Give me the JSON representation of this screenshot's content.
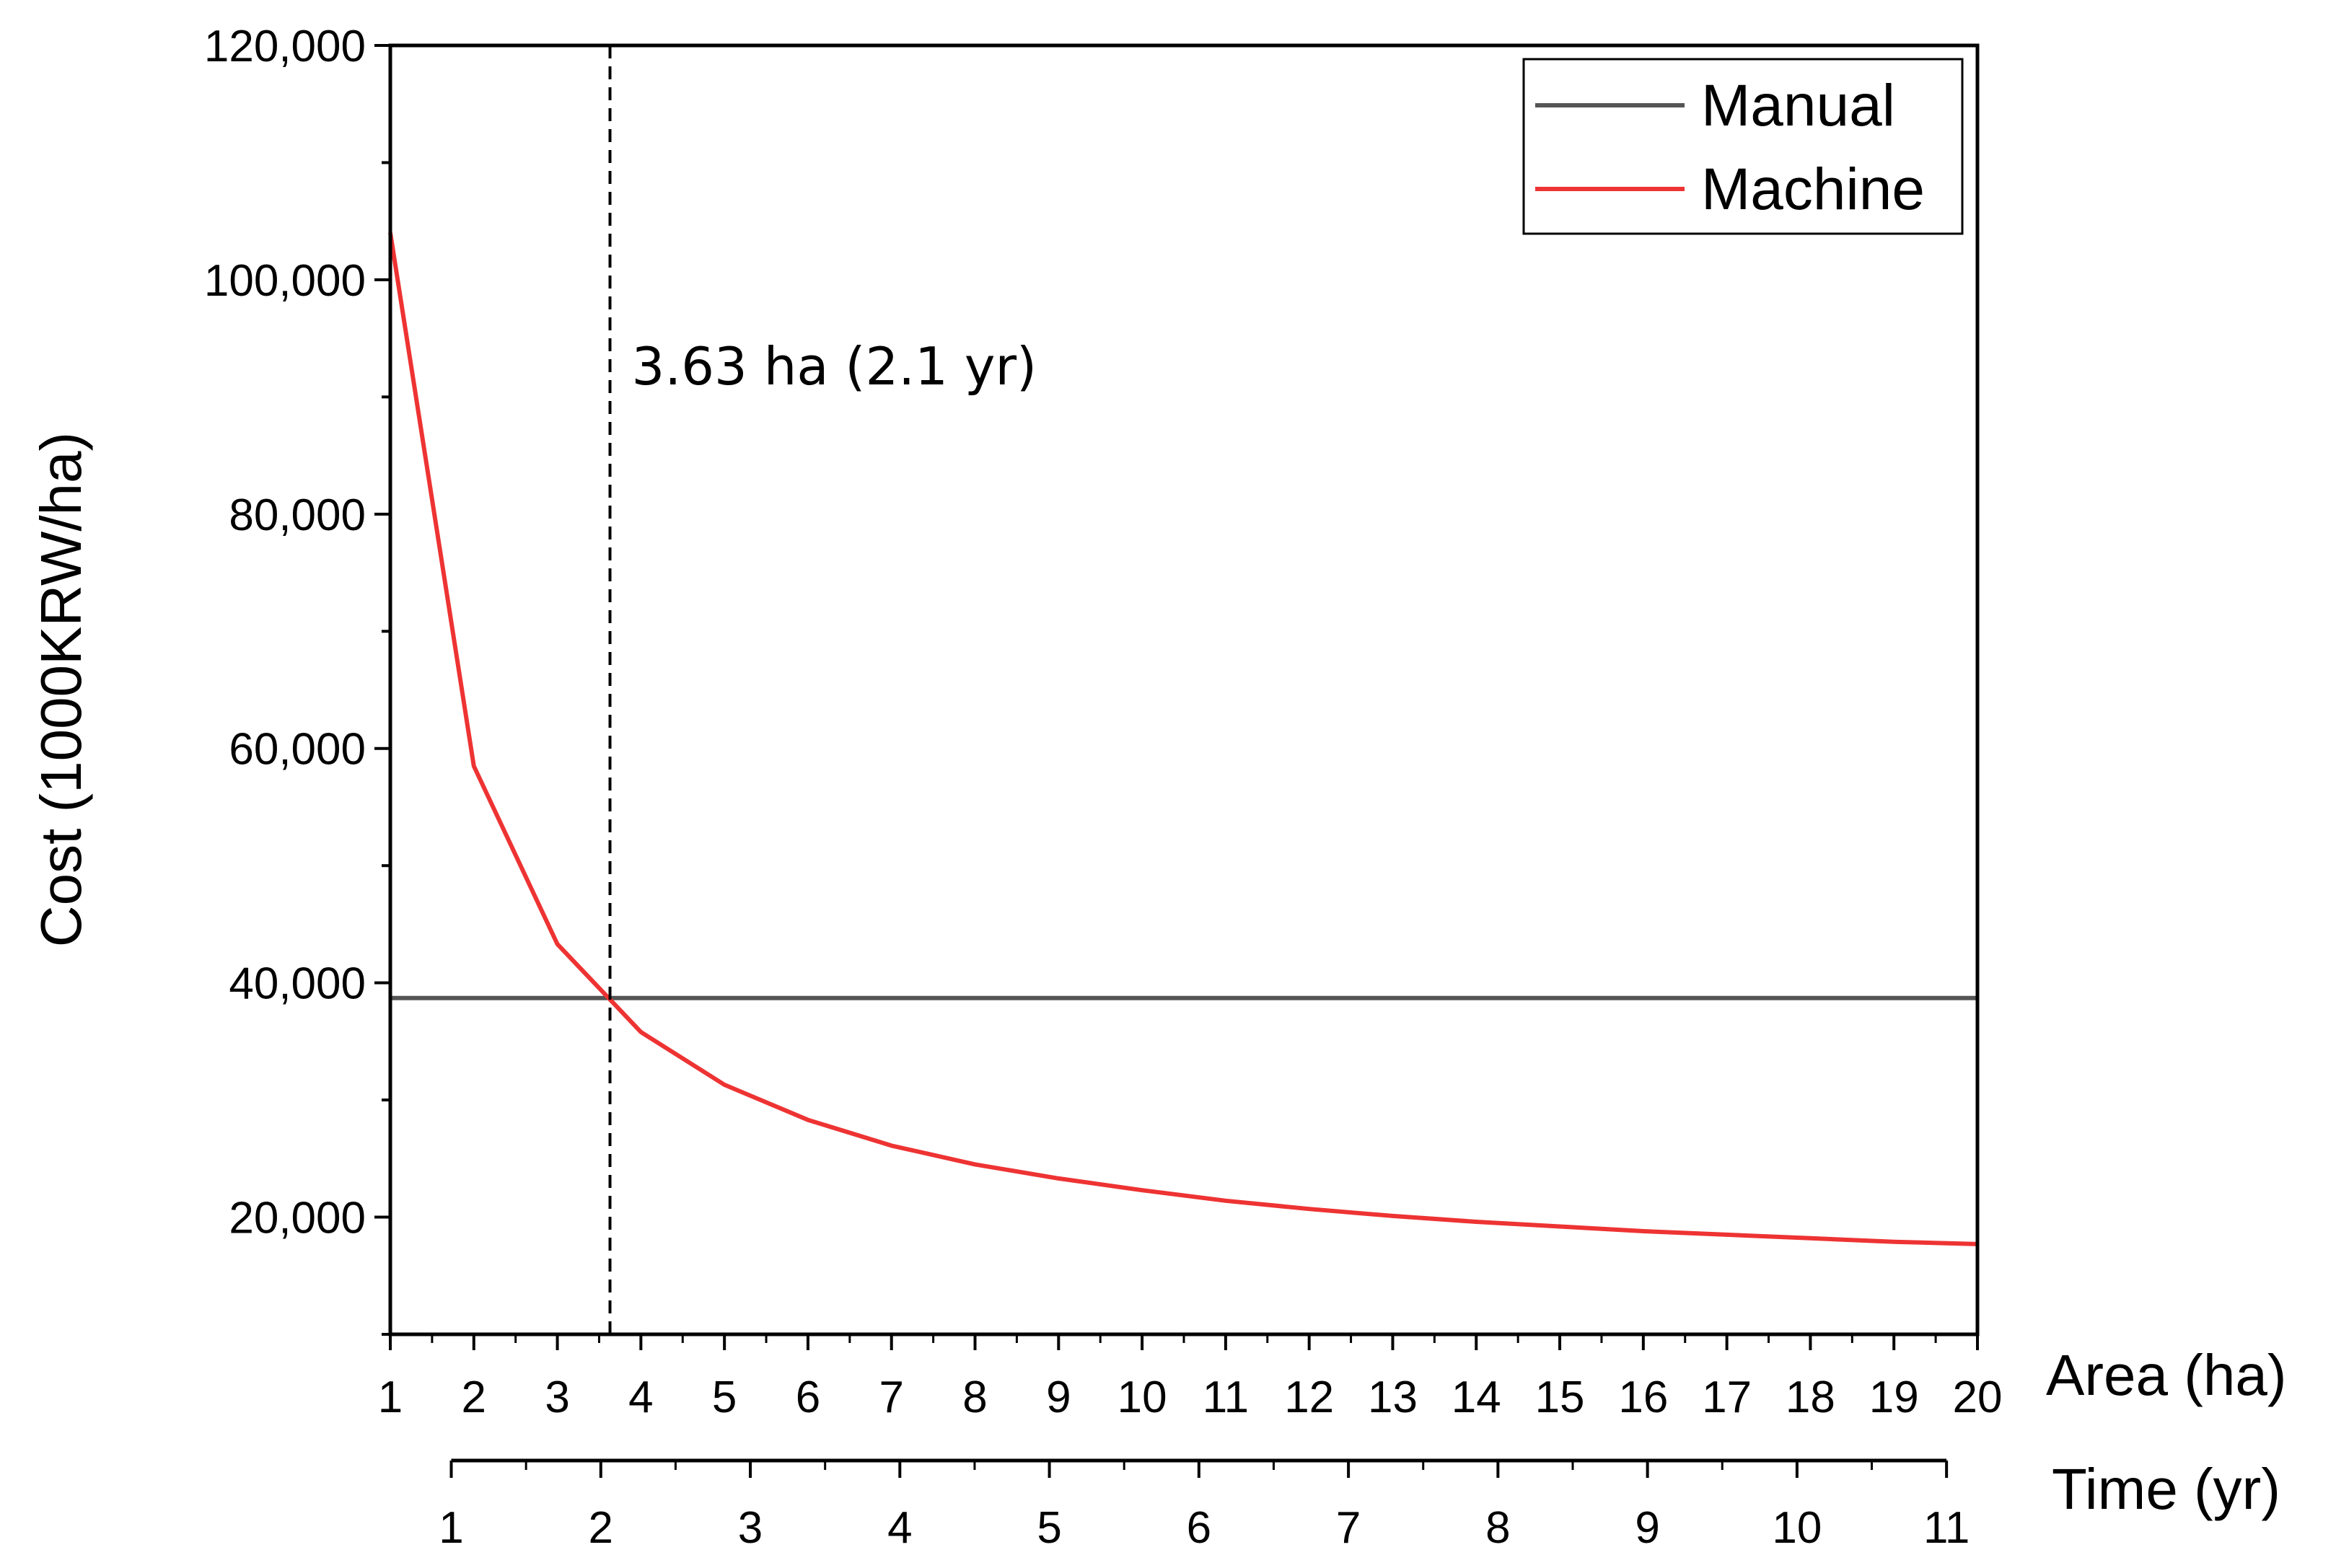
{
  "chart_data": {
    "type": "line",
    "title": "",
    "xlabel": "Area (ha)",
    "x2label": "Time (yr)",
    "ylabel": "Cost (1000KRW/ha)",
    "xlim": [
      1,
      20
    ],
    "ylim": [
      10000,
      120000
    ],
    "x_ticks": [
      1,
      2,
      3,
      4,
      5,
      6,
      7,
      8,
      9,
      10,
      11,
      12,
      13,
      14,
      15,
      16,
      17,
      18,
      19,
      20
    ],
    "y_ticks": [
      {
        "value": 20000,
        "label": "20,000"
      },
      {
        "value": 40000,
        "label": "40,000"
      },
      {
        "value": 60000,
        "label": "60,000"
      },
      {
        "value": 80000,
        "label": "80,000"
      },
      {
        "value": 100000,
        "label": "100,000"
      },
      {
        "value": 120000,
        "label": "120,000"
      }
    ],
    "time_ticks": [
      {
        "label": "1",
        "area": 1.73
      },
      {
        "label": "2",
        "area": 3.52
      },
      {
        "label": "3",
        "area": 5.31
      },
      {
        "label": "4",
        "area": 7.1
      },
      {
        "label": "5",
        "area": 8.89
      },
      {
        "label": "6",
        "area": 10.68
      },
      {
        "label": "7",
        "area": 12.47
      },
      {
        "label": "8",
        "area": 14.26
      },
      {
        "label": "9",
        "area": 16.05
      },
      {
        "label": "10",
        "area": 17.84
      },
      {
        "label": "11",
        "area": 19.63
      }
    ],
    "time_axis_range_area": [
      1.73,
      19.63
    ],
    "series": [
      {
        "name": "Manual",
        "color": "#555555",
        "x": [
          1,
          20
        ],
        "y": [
          38700,
          38700
        ]
      },
      {
        "name": "Machine",
        "color": "#ee3333",
        "x": [
          1,
          2,
          3,
          4,
          5,
          6,
          7,
          8,
          9,
          10,
          11,
          12,
          13,
          14,
          15,
          16,
          17,
          18,
          19,
          20
        ],
        "y": [
          104000,
          58500,
          43300,
          35800,
          31300,
          28300,
          26100,
          24500,
          23300,
          22300,
          21400,
          20700,
          20100,
          19600,
          19200,
          18800,
          18500,
          18200,
          17900,
          17700
        ]
      }
    ],
    "annotations": [
      {
        "text": "3.63 ha (2.1 yr)",
        "x": 3.63,
        "style": "dashed-vertical-line"
      }
    ],
    "legend_position": "top-right"
  }
}
